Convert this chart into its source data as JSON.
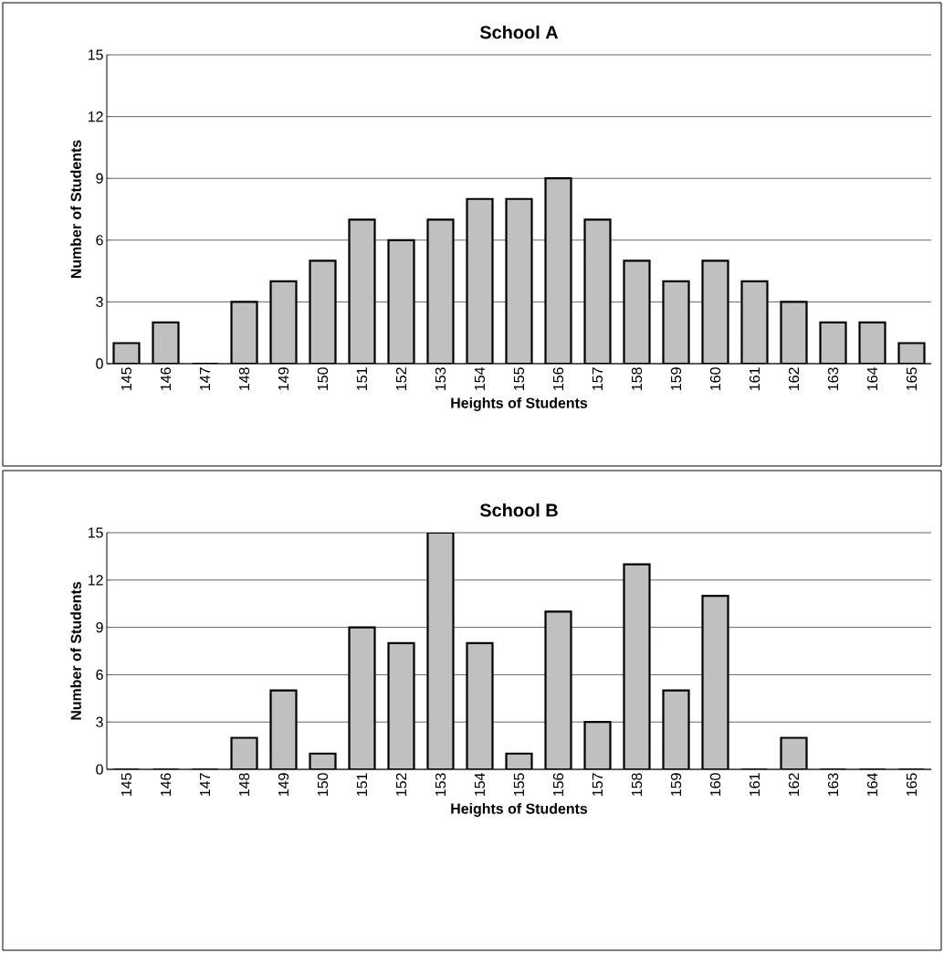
{
  "chart_data": [
    {
      "type": "bar",
      "title": "School A",
      "xlabel": "Heights of Students",
      "ylabel": "Number of Students",
      "categories": [
        "145",
        "146",
        "147",
        "148",
        "149",
        "150",
        "151",
        "152",
        "153",
        "154",
        "155",
        "156",
        "157",
        "158",
        "159",
        "160",
        "161",
        "162",
        "163",
        "164",
        "165"
      ],
      "values": [
        1,
        2,
        0,
        3,
        4,
        5,
        7,
        6,
        7,
        8,
        8,
        9,
        7,
        5,
        4,
        5,
        4,
        3,
        2,
        2,
        1
      ],
      "color": "#c0c0c0",
      "ylim": [
        0,
        15
      ],
      "yticks": [
        0,
        3,
        6,
        9,
        12,
        15
      ],
      "grid": "y"
    },
    {
      "type": "bar",
      "title": "School B",
      "xlabel": "Heights of Students",
      "ylabel": "Number of Students",
      "categories": [
        "145",
        "146",
        "147",
        "148",
        "149",
        "150",
        "151",
        "152",
        "153",
        "154",
        "155",
        "156",
        "157",
        "158",
        "159",
        "160",
        "161",
        "162",
        "163",
        "164",
        "165"
      ],
      "values": [
        0,
        0,
        0,
        2,
        5,
        1,
        9,
        8,
        15,
        8,
        1,
        10,
        3,
        13,
        5,
        11,
        0,
        2,
        0,
        0,
        0
      ],
      "color": "#c0c0c0",
      "ylim": [
        0,
        15
      ],
      "yticks": [
        0,
        3,
        6,
        9,
        12,
        15
      ],
      "grid": "y"
    }
  ]
}
